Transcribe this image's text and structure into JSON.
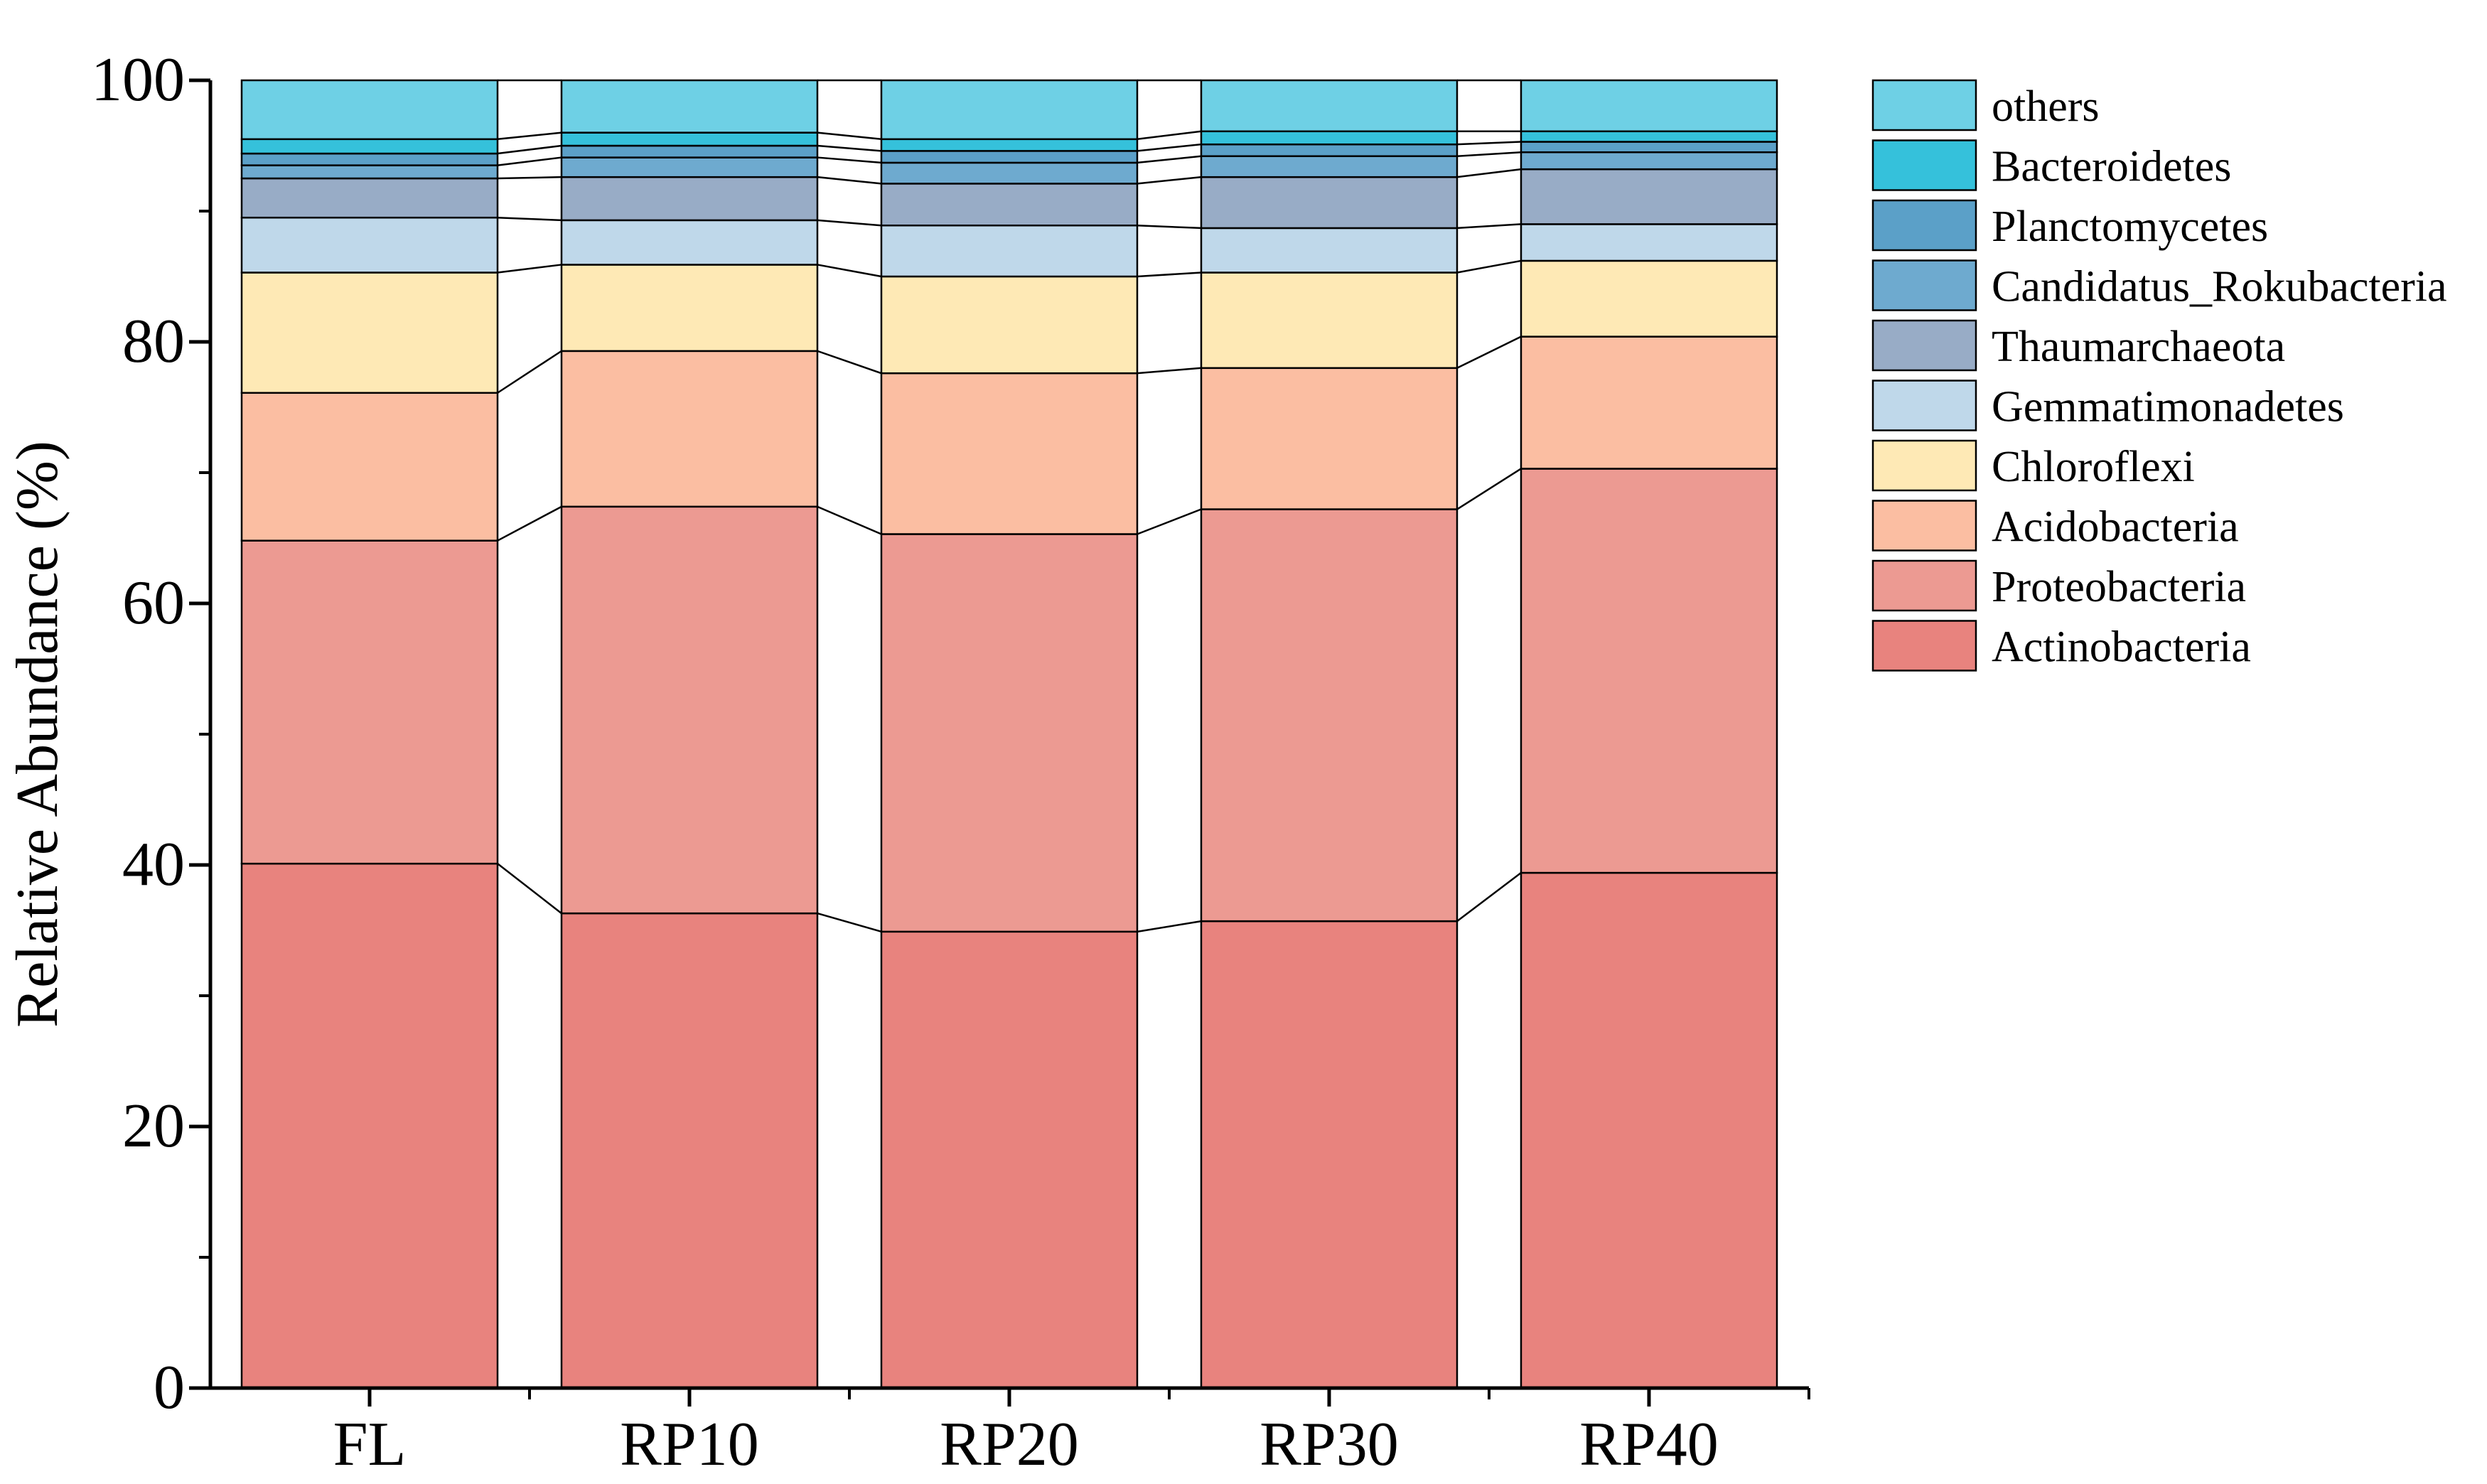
{
  "chart_data": {
    "type": "bar",
    "stacked": true,
    "title": "",
    "xlabel": "",
    "ylabel": "Relative Abundance (%)",
    "ylim": [
      0,
      100
    ],
    "yticks": [
      "0",
      "20",
      "40",
      "60",
      "80",
      "100"
    ],
    "categories": [
      "FL",
      "RP10",
      "RP20",
      "RP30",
      "RP40"
    ],
    "legend_position": "top-right",
    "series": [
      {
        "name": "Actinobacteria",
        "color": "#E8837E",
        "values": [
          40.1,
          36.3,
          34.9,
          35.7,
          39.4
        ]
      },
      {
        "name": "Proteobacteria",
        "color": "#EC9A92",
        "values": [
          24.7,
          31.1,
          30.4,
          31.5,
          30.9
        ]
      },
      {
        "name": "Acidobacteria",
        "color": "#FBBEA2",
        "values": [
          11.3,
          11.9,
          12.3,
          10.8,
          10.1
        ]
      },
      {
        "name": "Chloroflexi",
        "color": "#FEE9B5",
        "values": [
          9.2,
          6.6,
          7.4,
          7.3,
          5.8
        ]
      },
      {
        "name": "Gemmatimonadetes",
        "color": "#BFD8EA",
        "values": [
          4.2,
          3.4,
          3.9,
          3.4,
          2.8
        ]
      },
      {
        "name": "Thaumarchaeota",
        "color": "#98ACC6",
        "values": [
          3.0,
          3.3,
          3.2,
          3.9,
          4.2
        ]
      },
      {
        "name": "Candidatus_Rokubacteria",
        "color": "#6EAACF",
        "values": [
          1.0,
          1.5,
          1.6,
          1.6,
          1.3
        ]
      },
      {
        "name": "Planctomycetes",
        "color": "#5BA0C8",
        "values": [
          0.9,
          0.9,
          0.9,
          0.9,
          0.8
        ]
      },
      {
        "name": "Bacteroidetes",
        "color": "#35C1DB",
        "values": [
          1.1,
          1.0,
          0.9,
          1.0,
          0.8
        ]
      },
      {
        "name": "others",
        "color": "#6ED0E5",
        "values": [
          4.5,
          4.0,
          4.5,
          3.9,
          3.9
        ]
      }
    ]
  }
}
